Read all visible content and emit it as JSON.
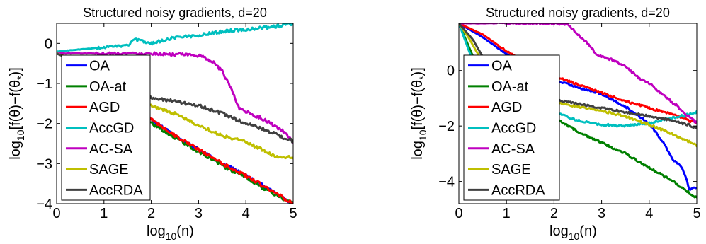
{
  "colors": {
    "OA": "#0000ff",
    "OA-at": "#008000",
    "AGD": "#ff0000",
    "AccGD": "#00bfbf",
    "AC-SA": "#bf00bf",
    "SAGE": "#bfbf00",
    "AccRDA": "#404040"
  },
  "chart_data": [
    {
      "type": "line",
      "title": "Structured noisy gradients, d=20",
      "xlabel_base": "log",
      "xlabel_sub": "10",
      "xlabel_arg": "(n)",
      "ylabel_base": "log",
      "ylabel_sub": "10",
      "ylabel_arg": "[f(θ)−f(θ",
      "ylabel_star_sub": "*",
      "ylabel_close": ")]",
      "xlim": [
        0,
        5
      ],
      "ylim": [
        -4,
        0.5
      ],
      "xticks": [
        0,
        1,
        2,
        3,
        4,
        5
      ],
      "yticks": [
        -4,
        -3,
        -2,
        -1,
        0
      ],
      "xtick_labels": [
        "0",
        "1",
        "2",
        "3",
        "4",
        "5"
      ],
      "ytick_labels": [
        "−4",
        "−3",
        "−2",
        "−1",
        "0"
      ],
      "grid": false,
      "legend": "top-left",
      "series": [
        {
          "name": "OA",
          "points": [
            [
              0,
              -0.25
            ],
            [
              0.5,
              -0.45
            ],
            [
              1,
              -0.85
            ],
            [
              1.5,
              -1.4
            ],
            [
              2,
              -1.9
            ],
            [
              2.5,
              -2.3
            ],
            [
              3,
              -2.65
            ],
            [
              3.5,
              -3.0
            ],
            [
              4,
              -3.3
            ],
            [
              4.5,
              -3.65
            ],
            [
              5,
              -4.0
            ]
          ]
        },
        {
          "name": "OA-at",
          "points": [
            [
              0,
              -0.25
            ],
            [
              0.5,
              -0.5
            ],
            [
              1,
              -0.95
            ],
            [
              1.5,
              -1.55
            ],
            [
              2,
              -2.0
            ],
            [
              2.5,
              -2.35
            ],
            [
              3,
              -2.7
            ],
            [
              3.5,
              -3.05
            ],
            [
              4,
              -3.35
            ],
            [
              4.5,
              -3.7
            ],
            [
              5,
              -4.0
            ]
          ]
        },
        {
          "name": "AGD",
          "points": [
            [
              0,
              -0.25
            ],
            [
              0.5,
              -0.45
            ],
            [
              1,
              -0.85
            ],
            [
              1.5,
              -1.4
            ],
            [
              2,
              -1.9
            ],
            [
              2.5,
              -2.3
            ],
            [
              3,
              -2.65
            ],
            [
              3.5,
              -3.0
            ],
            [
              4,
              -3.3
            ],
            [
              4.5,
              -3.65
            ],
            [
              5,
              -4.0
            ]
          ]
        },
        {
          "name": "AccGD",
          "points": [
            [
              0,
              -0.2
            ],
            [
              0.5,
              -0.15
            ],
            [
              1,
              -0.1
            ],
            [
              1.5,
              -0.05
            ],
            [
              1.65,
              0.1
            ],
            [
              2,
              0.0
            ],
            [
              2.5,
              0.15
            ],
            [
              3,
              0.2
            ],
            [
              3.5,
              0.3
            ],
            [
              4,
              0.35
            ],
            [
              4.5,
              0.4
            ],
            [
              5,
              0.5
            ]
          ]
        },
        {
          "name": "AC-SA",
          "points": [
            [
              0,
              -0.25
            ],
            [
              1,
              -0.25
            ],
            [
              2,
              -0.25
            ],
            [
              3,
              -0.3
            ],
            [
              3.3,
              -0.45
            ],
            [
              3.5,
              -0.7
            ],
            [
              3.7,
              -1.15
            ],
            [
              3.85,
              -1.6
            ],
            [
              4,
              -1.7
            ],
            [
              4.3,
              -1.85
            ],
            [
              4.6,
              -2.05
            ],
            [
              4.85,
              -2.25
            ],
            [
              5,
              -2.5
            ]
          ]
        },
        {
          "name": "SAGE",
          "points": [
            [
              0,
              -0.25
            ],
            [
              0.5,
              -0.5
            ],
            [
              1,
              -0.9
            ],
            [
              1.5,
              -1.3
            ],
            [
              2,
              -1.55
            ],
            [
              2.5,
              -1.75
            ],
            [
              3,
              -2.05
            ],
            [
              3.5,
              -2.3
            ],
            [
              4,
              -2.45
            ],
            [
              4.5,
              -2.75
            ],
            [
              4.7,
              -2.85
            ],
            [
              5,
              -2.85
            ]
          ]
        },
        {
          "name": "AccRDA",
          "points": [
            [
              0,
              -0.25
            ],
            [
              0.5,
              -0.5
            ],
            [
              1,
              -0.85
            ],
            [
              1.5,
              -1.15
            ],
            [
              2,
              -1.35
            ],
            [
              2.5,
              -1.45
            ],
            [
              3,
              -1.55
            ],
            [
              3.5,
              -1.75
            ],
            [
              4,
              -2.0
            ],
            [
              4.5,
              -2.2
            ],
            [
              5,
              -2.45
            ]
          ]
        }
      ]
    },
    {
      "type": "line",
      "title": "Structured noisy gradients, d=20",
      "xlabel_base": "log",
      "xlabel_sub": "10",
      "xlabel_arg": "(n)",
      "ylabel_base": "log",
      "ylabel_sub": "10",
      "ylabel_arg": "[f(θ)−f(θ",
      "ylabel_star_sub": "*",
      "ylabel_close": ")]",
      "xlim": [
        0,
        5
      ],
      "ylim": [
        -4.8,
        1.7
      ],
      "xticks": [
        0,
        1,
        2,
        3,
        4,
        5
      ],
      "yticks": [
        -4,
        -2,
        0
      ],
      "xtick_labels": [
        "0",
        "1",
        "2",
        "3",
        "4",
        "5"
      ],
      "ytick_labels": [
        "−4",
        "−2",
        "0"
      ],
      "grid": false,
      "legend": "top-left",
      "series": [
        {
          "name": "OA",
          "points": [
            [
              0,
              1.7
            ],
            [
              0.5,
              1.2
            ],
            [
              1,
              0.6
            ],
            [
              1.5,
              0.1
            ],
            [
              2,
              -0.35
            ],
            [
              2.5,
              -0.6
            ],
            [
              3,
              -0.85
            ],
            [
              3.5,
              -1.3
            ],
            [
              4,
              -1.9
            ],
            [
              4.3,
              -2.6
            ],
            [
              4.5,
              -3.2
            ],
            [
              4.7,
              -3.5
            ],
            [
              4.85,
              -4.3
            ],
            [
              5,
              -4.2
            ]
          ]
        },
        {
          "name": "OA-at",
          "points": [
            [
              0,
              1.7
            ],
            [
              0.3,
              0.5
            ],
            [
              0.6,
              -0.4
            ],
            [
              1,
              -1.0
            ],
            [
              1.5,
              -1.4
            ],
            [
              2,
              -1.7
            ],
            [
              2.5,
              -2.2
            ],
            [
              3,
              -2.6
            ],
            [
              3.5,
              -3.0
            ],
            [
              4,
              -3.5
            ],
            [
              4.5,
              -4.0
            ],
            [
              5,
              -4.6
            ]
          ]
        },
        {
          "name": "AGD",
          "points": [
            [
              0,
              1.7
            ],
            [
              0.5,
              1.3
            ],
            [
              1,
              0.7
            ],
            [
              1.5,
              0.2
            ],
            [
              2,
              -0.2
            ],
            [
              2.5,
              -0.5
            ],
            [
              3,
              -0.8
            ],
            [
              3.5,
              -1.1
            ],
            [
              4,
              -1.35
            ],
            [
              4.5,
              -1.6
            ],
            [
              5,
              -1.9
            ]
          ]
        },
        {
          "name": "AccGD",
          "points": [
            [
              0,
              1.7
            ],
            [
              0.3,
              0.3
            ],
            [
              0.6,
              -0.7
            ],
            [
              1,
              -1.1
            ],
            [
              1.5,
              -1.3
            ],
            [
              2,
              -1.5
            ],
            [
              2.5,
              -1.8
            ],
            [
              3,
              -1.95
            ],
            [
              3.5,
              -2.0
            ],
            [
              4,
              -1.9
            ],
            [
              4.5,
              -1.7
            ],
            [
              4.8,
              -1.6
            ],
            [
              5,
              -1.5
            ]
          ]
        },
        {
          "name": "AC-SA",
          "points": [
            [
              0,
              1.7
            ],
            [
              1,
              1.7
            ],
            [
              2,
              1.7
            ],
            [
              2.3,
              1.65
            ],
            [
              2.5,
              1.3
            ],
            [
              2.75,
              0.9
            ],
            [
              2.9,
              0.55
            ],
            [
              3.2,
              0.4
            ],
            [
              3.5,
              0.15
            ],
            [
              3.8,
              -0.3
            ],
            [
              4,
              -0.45
            ],
            [
              4.3,
              -0.9
            ],
            [
              4.6,
              -1.3
            ],
            [
              4.85,
              -1.7
            ],
            [
              5,
              -1.9
            ]
          ]
        },
        {
          "name": "SAGE",
          "points": [
            [
              0,
              1.7
            ],
            [
              0.2,
              1.2
            ],
            [
              0.4,
              0.6
            ],
            [
              0.7,
              -0.1
            ],
            [
              1,
              -0.5
            ],
            [
              1.5,
              -0.9
            ],
            [
              2,
              -1.15
            ],
            [
              2.5,
              -1.3
            ],
            [
              3,
              -1.45
            ],
            [
              3.5,
              -1.65
            ],
            [
              4,
              -1.95
            ],
            [
              4.5,
              -2.3
            ],
            [
              5,
              -2.7
            ]
          ]
        },
        {
          "name": "AccRDA",
          "points": [
            [
              0,
              1.7
            ],
            [
              0.3,
              1.1
            ],
            [
              0.6,
              0.2
            ],
            [
              1,
              -0.6
            ],
            [
              1.5,
              -0.9
            ],
            [
              2,
              -1.05
            ],
            [
              2.5,
              -1.2
            ],
            [
              3,
              -1.35
            ],
            [
              3.5,
              -1.5
            ],
            [
              4,
              -1.65
            ],
            [
              4.5,
              -1.8
            ],
            [
              5,
              -2.05
            ]
          ]
        }
      ]
    }
  ]
}
